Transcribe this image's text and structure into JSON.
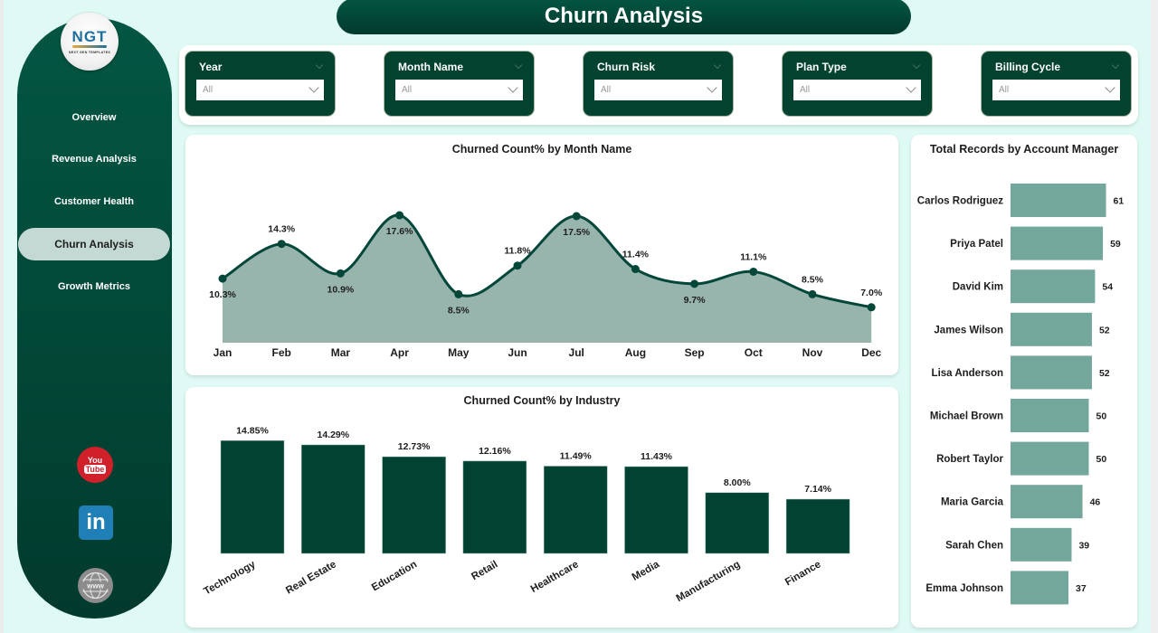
{
  "title": "Churn Analysis",
  "logo": {
    "mark": "NGT",
    "subtitle": "NEXT GEN TEMPLATES"
  },
  "sidebar": {
    "items": [
      {
        "label": "Overview",
        "active": false
      },
      {
        "label": "Revenue Analysis",
        "active": false
      },
      {
        "label": "Customer Health",
        "active": false
      },
      {
        "label": "Churn Analysis",
        "active": true
      },
      {
        "label": "Growth Metrics",
        "active": false
      }
    ],
    "social": [
      {
        "name": "youtube-icon",
        "label_top": "You",
        "label_bottom": "Tube"
      },
      {
        "name": "linkedin-icon",
        "label": "in"
      },
      {
        "name": "website-icon",
        "label": "www"
      }
    ]
  },
  "filters": [
    {
      "label": "Year",
      "value": "All"
    },
    {
      "label": "Month Name",
      "value": "All"
    },
    {
      "label": "Churn Risk",
      "value": "All"
    },
    {
      "label": "Plan Type",
      "value": "All"
    },
    {
      "label": "Billing Cycle",
      "value": "All"
    }
  ],
  "colors": {
    "primary_dark": "#02422f",
    "area_fill": "#98b5ad",
    "bar_manager": "#74a79b",
    "bar_industry": "#024232",
    "background": "#dffaf5"
  },
  "chart_data": [
    {
      "type": "area",
      "title": "Churned Count% by Month Name",
      "categories": [
        "Jan",
        "Feb",
        "Mar",
        "Apr",
        "May",
        "Jun",
        "Jul",
        "Aug",
        "Sep",
        "Oct",
        "Nov",
        "Dec"
      ],
      "values": [
        10.3,
        14.3,
        10.9,
        17.6,
        8.5,
        11.8,
        17.5,
        11.4,
        9.7,
        11.1,
        8.5,
        7.0
      ],
      "labels": [
        "10.3%",
        "14.3%",
        "10.9%",
        "17.6%",
        "8.5%",
        "11.8%",
        "17.5%",
        "11.4%",
        "9.7%",
        "11.1%",
        "8.5%",
        "7.0%"
      ],
      "xlabel": "",
      "ylabel": "",
      "grid": false
    },
    {
      "type": "bar",
      "title": "Churned Count% by Industry",
      "categories": [
        "Technology",
        "Real Estate",
        "Education",
        "Retail",
        "Healthcare",
        "Media",
        "Manufacturing",
        "Finance"
      ],
      "values": [
        14.85,
        14.29,
        12.73,
        12.16,
        11.49,
        11.43,
        8.0,
        7.14
      ],
      "labels": [
        "14.85%",
        "14.29%",
        "12.73%",
        "12.16%",
        "11.49%",
        "11.43%",
        "8.00%",
        "7.14%"
      ],
      "xlabel": "",
      "ylabel": "",
      "grid": false
    },
    {
      "type": "bar",
      "orientation": "horizontal",
      "title": "Total Records by Account Manager",
      "categories": [
        "Carlos Rodriguez",
        "Priya Patel",
        "David Kim",
        "James Wilson",
        "Lisa Anderson",
        "Michael Brown",
        "Robert Taylor",
        "Maria Garcia",
        "Sarah Chen",
        "Emma Johnson"
      ],
      "values": [
        61,
        59,
        54,
        52,
        52,
        50,
        50,
        46,
        39,
        37
      ],
      "xlabel": "",
      "ylabel": "",
      "grid": false
    }
  ]
}
